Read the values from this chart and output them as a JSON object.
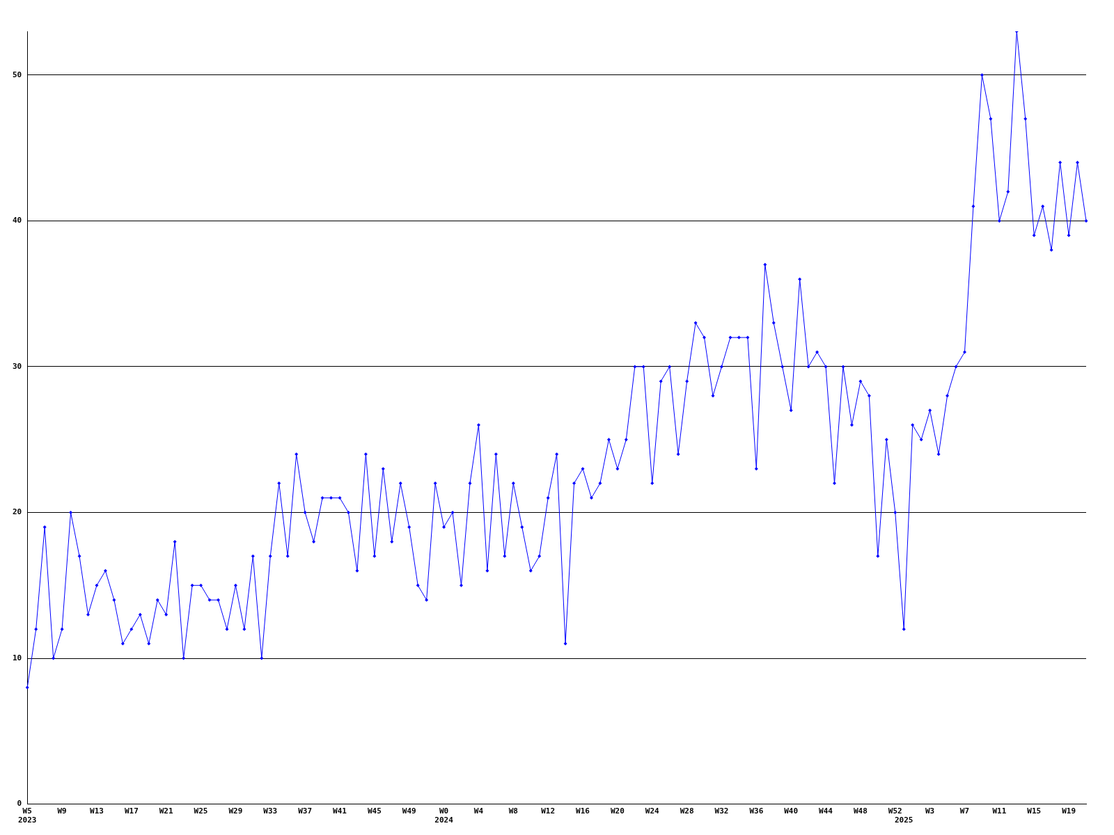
{
  "chart_data": {
    "type": "line",
    "categories": [
      "W5\n2023",
      null,
      null,
      null,
      "W9",
      null,
      null,
      null,
      "W13",
      null,
      null,
      null,
      "W17",
      null,
      null,
      null,
      "W21",
      null,
      null,
      null,
      "W25",
      null,
      null,
      null,
      "W29",
      null,
      null,
      null,
      "W33",
      null,
      null,
      null,
      "W37",
      null,
      null,
      null,
      "W41",
      null,
      null,
      null,
      "W45",
      null,
      null,
      null,
      "W49",
      null,
      null,
      null,
      "W0\n2024",
      null,
      null,
      null,
      "W4",
      null,
      null,
      null,
      "W8",
      null,
      null,
      null,
      "W12",
      null,
      null,
      null,
      "W16",
      null,
      null,
      null,
      "W20",
      null,
      null,
      null,
      "W24",
      null,
      null,
      null,
      "W28",
      null,
      null,
      null,
      "W32",
      null,
      null,
      null,
      "W36",
      null,
      null,
      null,
      "W40",
      null,
      null,
      null,
      "W44",
      null,
      null,
      null,
      "W48",
      null,
      null,
      null,
      "W52",
      "\n2025",
      null,
      null,
      "W3",
      null,
      null,
      null,
      "W7",
      null,
      null,
      null,
      "W11",
      null,
      null,
      null,
      "W15",
      null,
      null,
      null,
      "W19",
      null,
      null
    ],
    "series": [
      {
        "color": "#0000ff",
        "values": [
          8,
          12,
          19,
          10,
          12,
          20,
          17,
          13,
          15,
          16,
          14,
          11,
          12,
          13,
          11,
          14,
          13,
          18,
          10,
          15,
          15,
          14,
          14,
          12,
          15,
          12,
          17,
          10,
          17,
          22,
          17,
          24,
          20,
          18,
          21,
          21,
          21,
          20,
          16,
          24,
          17,
          23,
          18,
          22,
          19,
          15,
          14,
          22,
          19,
          20,
          15,
          22,
          26,
          16,
          24,
          17,
          22,
          19,
          16,
          17,
          21,
          24,
          11,
          22,
          23,
          21,
          22,
          25,
          23,
          25,
          30,
          30,
          22,
          29,
          30,
          24,
          29,
          33,
          32,
          28,
          30,
          32,
          32,
          32,
          23,
          37,
          33,
          30,
          27,
          36,
          30,
          31,
          30,
          22,
          30,
          26,
          29,
          28,
          17,
          25,
          20,
          12,
          26,
          25,
          27,
          24,
          28,
          30,
          31,
          41,
          50,
          47,
          40,
          42,
          53,
          47,
          39,
          41,
          38,
          44,
          39,
          44,
          40
        ]
      }
    ],
    "ylim": [
      0,
      53
    ],
    "yticks": [
      0,
      10,
      20,
      30,
      40,
      50
    ],
    "grid": "y",
    "legend": false,
    "marker": "diamond",
    "line_style": "solid"
  }
}
